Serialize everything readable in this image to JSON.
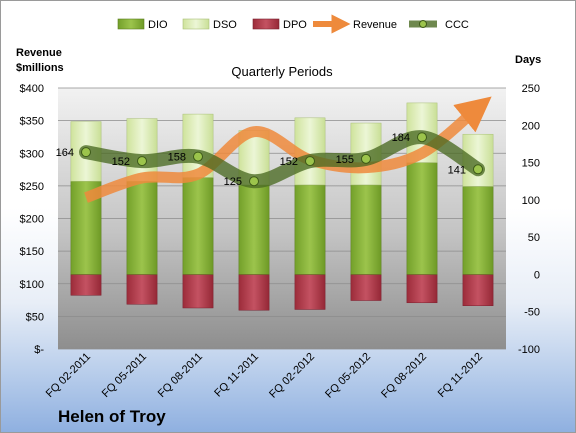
{
  "chart_data": {
    "type": "bar",
    "title": "Quarterly Periods",
    "company": "Helen of Troy",
    "left_axis_title": [
      "Revenue",
      "$millions"
    ],
    "right_axis_title": "Days",
    "categories": [
      "FQ 02-2011",
      "FQ 05-2011",
      "FQ 08-2011",
      "FQ 11-2011",
      "FQ 02-2012",
      "FQ 05-2012",
      "FQ 08-2012",
      "FQ 11-2012"
    ],
    "left_ticks": [
      "$-",
      "$50",
      "$100",
      "$150",
      "$200",
      "$250",
      "$300",
      "$350",
      "$400"
    ],
    "right_ticks": [
      "-100",
      "-50",
      "0",
      "50",
      "100",
      "150",
      "200",
      "250"
    ],
    "ylim_left": [
      0,
      400
    ],
    "ylim_right": [
      -100,
      250
    ],
    "series": [
      {
        "name": "DIO",
        "axis": "right",
        "values": [
          125,
          125,
          130,
          120,
          120,
          120,
          150,
          118
        ],
        "color": "#8cb43c"
      },
      {
        "name": "DSO",
        "axis": "right",
        "values": [
          80,
          84,
          85,
          73,
          90,
          83,
          80,
          70
        ],
        "color": "#d9ecb0"
      },
      {
        "name": "DPO",
        "axis": "right",
        "values": [
          -28,
          -40,
          -45,
          -48,
          -47,
          -35,
          -38,
          -42
        ],
        "color": "#b23a48"
      },
      {
        "name": "Revenue",
        "axis": "left",
        "values": [
          232,
          262,
          268,
          333,
          290,
          278,
          300,
          370
        ],
        "color": "#ee8a3c"
      },
      {
        "name": "CCC",
        "axis": "right",
        "values": [
          164,
          152,
          158,
          125,
          152,
          155,
          184,
          141
        ],
        "color": "#4a6a22"
      }
    ],
    "ccc_labels": [
      "164",
      "152",
      "158",
      "125",
      "152",
      "155",
      "184",
      "141"
    ]
  }
}
